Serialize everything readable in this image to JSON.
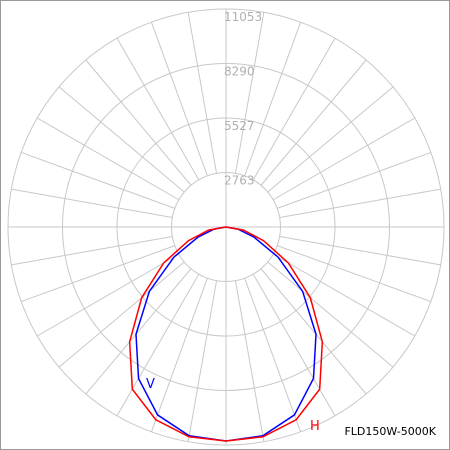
{
  "chart_data": {
    "type": "polar",
    "title": "FLD150W-5000K",
    "theta": [
      -90,
      -80,
      -70,
      -60,
      -50,
      -40,
      -30,
      -20,
      -10,
      0,
      10,
      20,
      30,
      40,
      50,
      60,
      70,
      80,
      90
    ],
    "series": [
      {
        "name": "V",
        "color": "#0000ff",
        "values": [
          0,
          610,
          1520,
          3040,
          5070,
          7100,
          8870,
          10140,
          10750,
          10850,
          10750,
          10140,
          8870,
          7100,
          5070,
          3040,
          1520,
          610,
          0
        ]
      },
      {
        "name": "H",
        "color": "#ff0000",
        "values": [
          0,
          900,
          2030,
          3650,
          5580,
          7600,
          9500,
          10400,
          10800,
          10850,
          10800,
          10400,
          9500,
          7600,
          5580,
          3650,
          2030,
          900,
          0
        ]
      }
    ],
    "rlim": [
      0,
      11053
    ],
    "rticks": [
      2763,
      5527,
      8290,
      11053
    ],
    "grid": true
  }
}
